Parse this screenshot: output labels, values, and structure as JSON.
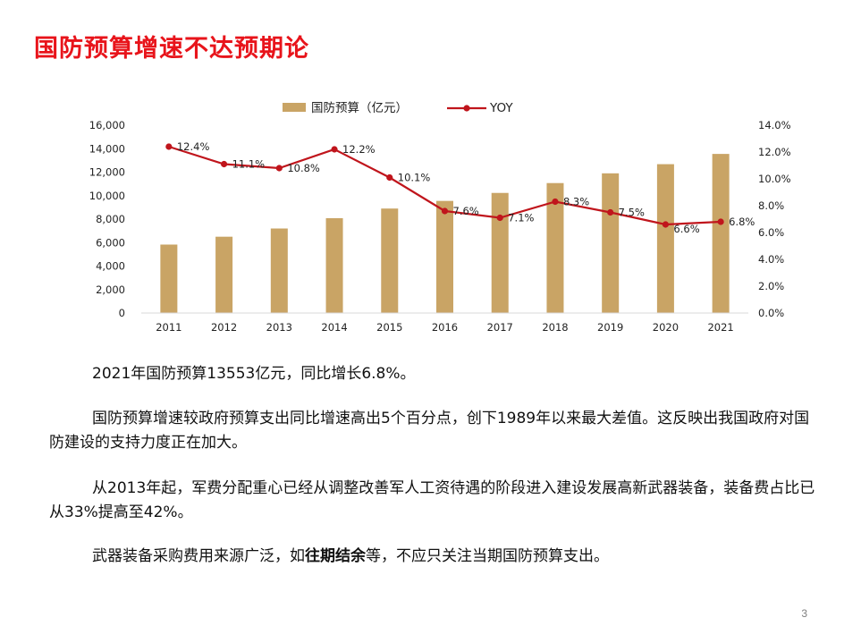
{
  "slide": {
    "title": "国防预算增速不达预期论",
    "page_number": "3"
  },
  "paragraphs": {
    "p1": "2021年国防预算13553亿元，同比增长6.8%。",
    "p2": "国防预算增速较政府预算支出同比增速高出5个百分点，创下1989年以来最大差值。这反映出我国政府对国防建设的支持力度正在加大。",
    "p3": "从2013年起，军费分配重心已经从调整改善军人工资待遇的阶段进入建设发展高新武器装备，装备费占比已从33%提高至42%。",
    "p4_pre": "武器装备采购费用来源广泛，如",
    "p4_bold": "往期结余",
    "p4_post": "等，不应只关注当期国防预算支出。"
  },
  "chart_data": {
    "type": "bar",
    "categories": [
      "2011",
      "2012",
      "2013",
      "2014",
      "2015",
      "2016",
      "2017",
      "2018",
      "2019",
      "2020",
      "2021"
    ],
    "series": [
      {
        "name": "国防预算（亿元）",
        "type": "bar",
        "axis": "left",
        "color": "#c9a465",
        "values": [
          5830,
          6500,
          7200,
          8080,
          8900,
          9550,
          10230,
          11070,
          11900,
          12680,
          13553
        ]
      },
      {
        "name": "YOY",
        "type": "line",
        "axis": "right",
        "color": "#c0151c",
        "values": [
          12.4,
          11.1,
          10.8,
          12.2,
          10.1,
          7.6,
          7.1,
          8.3,
          7.5,
          6.6,
          6.8
        ],
        "labels": [
          "12.4%",
          "11.1%",
          "10.8%",
          "12.2%",
          "10.1%",
          "7.6%",
          "7.1%",
          "8.3%",
          "7.5%",
          "6.6%",
          "6.8%"
        ]
      }
    ],
    "y_left": {
      "ylim": [
        0,
        16000
      ],
      "ticks": [
        0,
        2000,
        4000,
        6000,
        8000,
        10000,
        12000,
        14000,
        16000
      ],
      "tick_labels": [
        "0",
        "2,000",
        "4,000",
        "6,000",
        "8,000",
        "10,000",
        "12,000",
        "14,000",
        "16,000"
      ]
    },
    "y_right": {
      "ylim": [
        0,
        14
      ],
      "ticks": [
        0,
        2,
        4,
        6,
        8,
        10,
        12,
        14
      ],
      "tick_labels": [
        "0.0%",
        "2.0%",
        "4.0%",
        "6.0%",
        "8.0%",
        "10.0%",
        "12.0%",
        "14.0%"
      ]
    },
    "legend": "top-center",
    "grid": false
  }
}
